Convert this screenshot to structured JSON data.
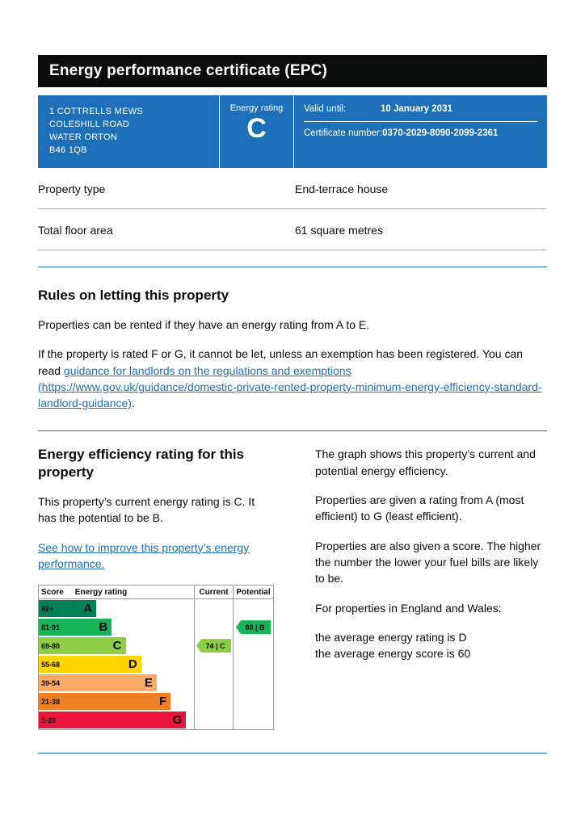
{
  "header": {
    "title": "Energy performance certificate (EPC)"
  },
  "summary": {
    "address_lines": [
      "1 COTTRELLS MEWS",
      "COLESHILL ROAD",
      "WATER ORTON",
      "B46 1QB"
    ],
    "energy_rating_label": "Energy rating",
    "energy_rating_value": "C",
    "valid_until_label": "Valid until:",
    "valid_until_value": "10 January 2031",
    "certificate_number_label": "Certificate number:",
    "certificate_number_value": "0370-2029-8090-2099-2361"
  },
  "property_details": [
    {
      "label": "Property type",
      "value": "End-terrace house"
    },
    {
      "label": "Total floor area",
      "value": "61 square metres"
    }
  ],
  "rules": {
    "heading": "Rules on letting this property",
    "para1": "Properties can be rented if they have an energy rating from A to E.",
    "para2_before": "If the property is rated F or G, it cannot be let, unless an exemption has been registered. You can read ",
    "link": "guidance for landlords on the regulations and exemptions (https://www.gov.uk/guidance/domestic-private-rented-property-minimum-energy-efficiency-standard-landlord-guidance)",
    "para2_after": "."
  },
  "rating": {
    "heading": "Energy efficiency rating for this property",
    "para1": "This property’s current energy rating is C. It has the potential to be B.",
    "link": "See how to improve this property’s energy performance.",
    "right_paras": [
      "The graph shows this property’s current and potential energy efficiency.",
      "Properties are given a rating from A (most efficient) to G (least efficient).",
      "Properties are also given a score. The higher the number the lower your fuel bills are likely to be.",
      "For properties in England and Wales:"
    ],
    "average_lines": [
      "the average energy rating is D",
      "the average energy score is 60"
    ]
  },
  "colors": {
    "accent_blue": "#1d70b8",
    "header_black": "#0b0c0c"
  },
  "chart_data": {
    "type": "bar",
    "title": "Energy efficiency rating",
    "columns": [
      "Score",
      "Energy rating",
      "Current",
      "Potential"
    ],
    "bands": [
      {
        "score": "92+",
        "letter": "A",
        "color": "#008054",
        "width_pct": 37
      },
      {
        "score": "81-91",
        "letter": "B",
        "color": "#19b459",
        "width_pct": 47
      },
      {
        "score": "69-80",
        "letter": "C",
        "color": "#8dce46",
        "width_pct": 56
      },
      {
        "score": "55-68",
        "letter": "D",
        "color": "#ffd500",
        "width_pct": 66
      },
      {
        "score": "39-54",
        "letter": "E",
        "color": "#fcaa65",
        "width_pct": 76
      },
      {
        "score": "21-38",
        "letter": "F",
        "color": "#ef8023",
        "width_pct": 85
      },
      {
        "score": "1-20",
        "letter": "G",
        "color": "#e9153b",
        "width_pct": 95
      }
    ],
    "current": {
      "score": 74,
      "letter": "C",
      "band_index": 2,
      "color": "#8dce46"
    },
    "potential": {
      "score": 88,
      "letter": "B",
      "band_index": 1,
      "color": "#19b459"
    }
  }
}
